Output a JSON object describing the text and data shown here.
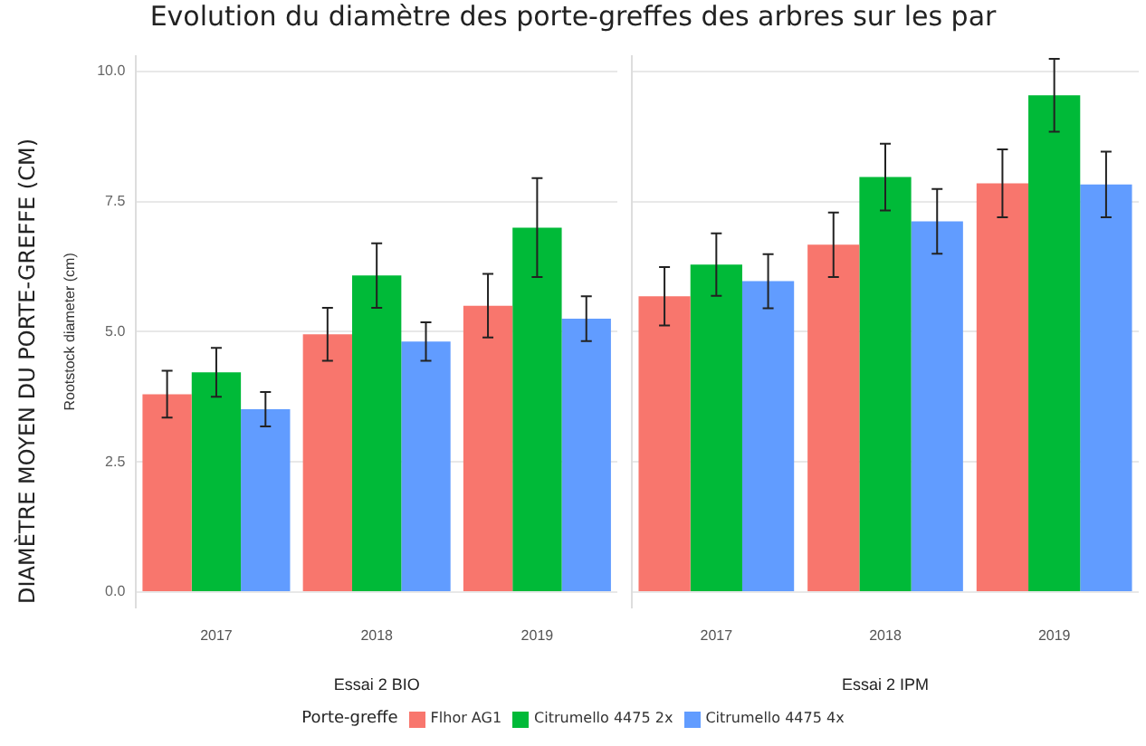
{
  "chart_data": [
    {
      "type": "bar",
      "title": "Evolution du diamètre des porte-greffes des arbres sur les par",
      "ylabel": "Rootstock diameter (cm)",
      "xlabel": "Essai 2 BIO",
      "annotations": [
        "DIAMÈTRE MOYEN DU PORTE-GREFFE (CM)"
      ],
      "legend_title": "Porte-greffe",
      "legend": "bottom",
      "grid": "y",
      "categories": [
        "2017",
        "2018",
        "2019"
      ],
      "ylim": [
        -0.3,
        10.3
      ],
      "yticks": [
        {
          "value": 0,
          "label": "0.0"
        },
        {
          "value": 2.5,
          "label": "2.5"
        },
        {
          "value": 5,
          "label": "5.0"
        },
        {
          "value": 7.5,
          "label": "7.5"
        },
        {
          "value": 10,
          "label": "10.0"
        }
      ],
      "series": [
        {
          "name": "Flhor AG1",
          "color": "#f8766d",
          "values": [
            3.8,
            4.95,
            5.5
          ],
          "errors": [
            0.45,
            0.51,
            0.61
          ]
        },
        {
          "name": "Citrumello 4475 2x",
          "color": "#00ba38",
          "values": [
            4.22,
            6.08,
            7.0
          ],
          "errors": [
            0.47,
            0.62,
            0.95
          ]
        },
        {
          "name": "Citrumello 4475 4x",
          "color": "#619cff",
          "values": [
            3.51,
            4.81,
            5.25
          ],
          "errors": [
            0.33,
            0.37,
            0.43
          ]
        }
      ]
    },
    {
      "type": "bar",
      "xlabel": "Essai 2 IPM",
      "grid": "y",
      "tick_labels": "x",
      "categories": [
        "2017",
        "2018",
        "2019"
      ],
      "ylim": [
        -0.3,
        10.3
      ],
      "yticks": [
        0,
        2.5,
        5,
        7.5,
        10
      ],
      "series": [
        {
          "color": "#f8766d",
          "values": [
            5.68,
            6.67,
            7.85
          ],
          "errors": [
            0.56,
            0.62,
            0.65
          ]
        },
        {
          "color": "#00ba38",
          "values": [
            6.29,
            7.97,
            9.54
          ],
          "errors": [
            0.6,
            0.64,
            0.7
          ]
        },
        {
          "color": "#619cff",
          "values": [
            5.97,
            7.12,
            7.83
          ],
          "errors": [
            0.52,
            0.62,
            0.63
          ]
        }
      ]
    }
  ]
}
